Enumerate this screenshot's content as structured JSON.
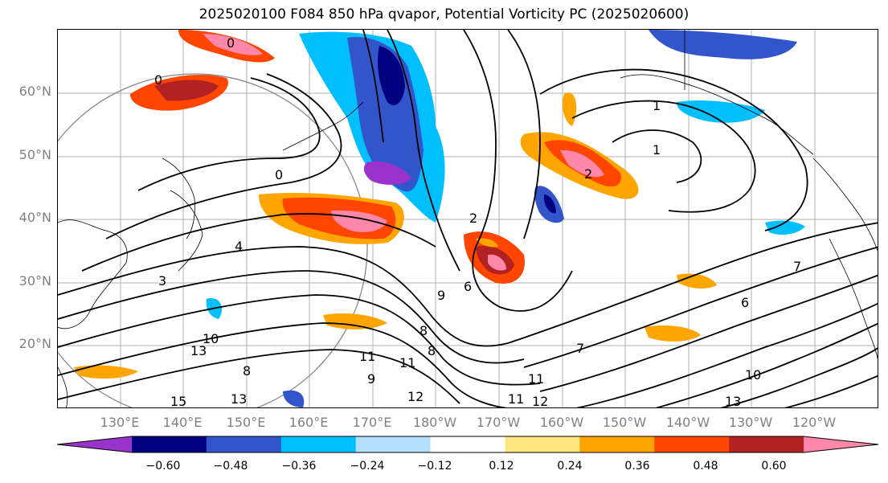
{
  "title": "2025020100 F084 850 hPa qvapor, Potential Vorticity PC (2025020600)",
  "lat_labels": [
    "60°N",
    "50°N",
    "40°N",
    "30°N",
    "20°N"
  ],
  "lon_labels": [
    "130°E",
    "140°E",
    "150°E",
    "160°E",
    "170°E",
    "180°W",
    "170°W",
    "160°W",
    "150°W",
    "140°W",
    "130°W",
    "120°W"
  ],
  "colorbar": {
    "ticks": [
      "−0.60",
      "−0.48",
      "−0.36",
      "−0.24",
      "−0.12",
      "0.12",
      "0.24",
      "0.36",
      "0.48",
      "0.60"
    ],
    "colors": [
      "#9933cc",
      "#000080",
      "#3355cc",
      "#00bfff",
      "#b3e0ff",
      "#ffffff",
      "#ffe680",
      "#ffa500",
      "#ff4500",
      "#b22222",
      "#ff88aa"
    ]
  },
  "contour_labels": [
    "0",
    "0",
    "0",
    "1",
    "1",
    "2",
    "2",
    "3",
    "4",
    "6",
    "6",
    "7",
    "7",
    "8",
    "8",
    "8",
    "9",
    "9",
    "10",
    "10",
    "11",
    "11",
    "11",
    "11",
    "12",
    "12",
    "13",
    "13",
    "13",
    "15"
  ]
}
